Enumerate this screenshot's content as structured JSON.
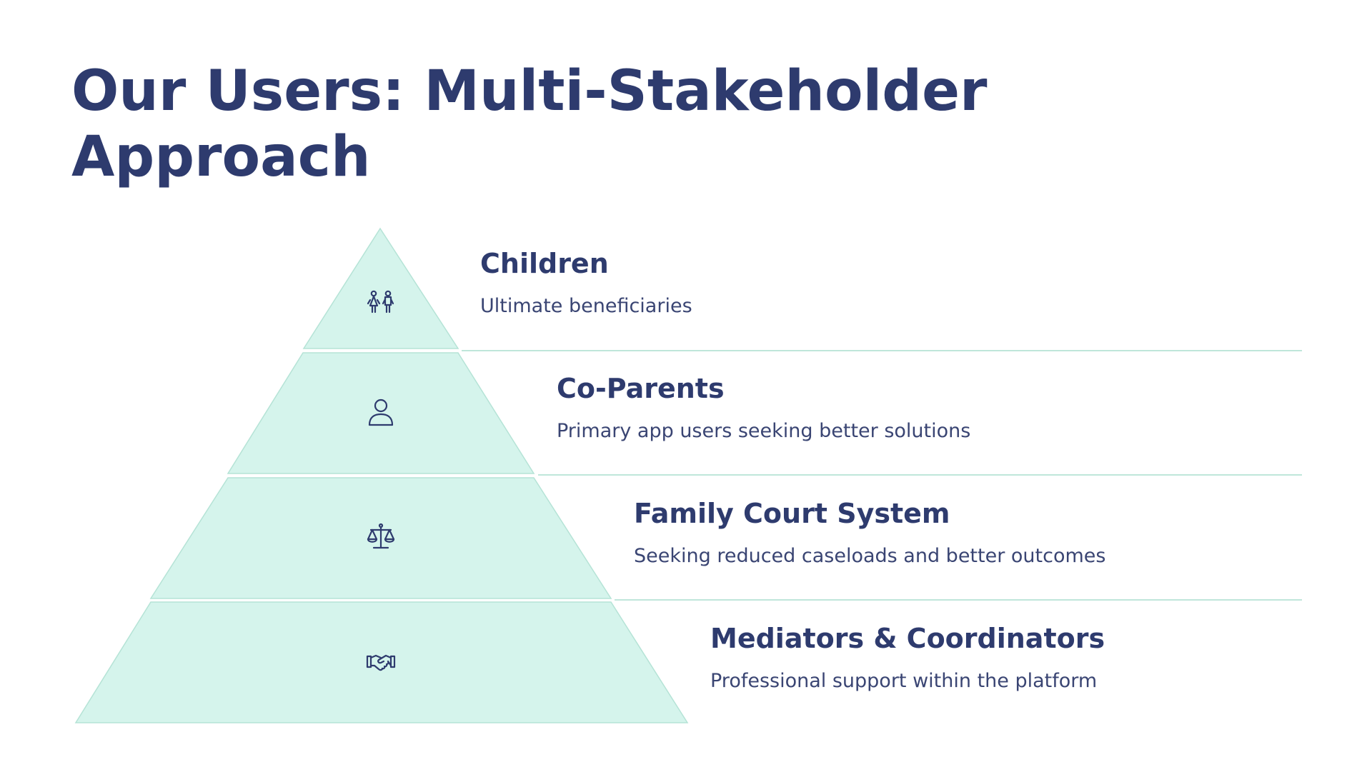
{
  "slide": {
    "title": "Our Users: Multi-Stakeholder Approach"
  },
  "pyramid": {
    "tiers": [
      {
        "heading": "Children",
        "description": "Ultimate beneficiaries",
        "icon": "children-icon"
      },
      {
        "heading": "Co-Parents",
        "description": "Primary app users seeking better solutions",
        "icon": "person-icon"
      },
      {
        "heading": "Family Court System",
        "description": "Seeking reduced caseloads and better outcomes",
        "icon": "scales-of-justice-icon"
      },
      {
        "heading": "Mediators & Coordinators",
        "description": "Professional support within the platform",
        "icon": "handshake-icon"
      }
    ]
  },
  "colors": {
    "title": "#2e3b6e",
    "tier_fill": "#d5f4ec",
    "tier_stroke": "#b5e3d6",
    "divider": "#bfe6da"
  }
}
